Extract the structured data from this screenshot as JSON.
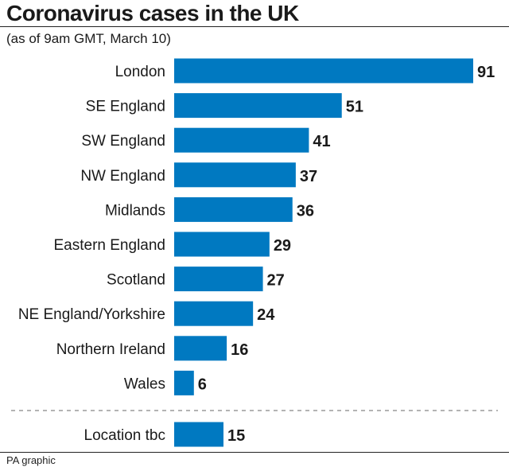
{
  "title": "Coronavirus cases in the UK",
  "subtitle": "(as of 9am GMT, March 10)",
  "source": "PA graphic",
  "bar_color": "#0079c1",
  "chart_data": {
    "type": "bar",
    "orientation": "horizontal",
    "title": "Coronavirus cases in the UK",
    "subtitle": "(as of 9am GMT, March 10)",
    "categories": [
      "London",
      "SE England",
      "SW England",
      "NW England",
      "Midlands",
      "Eastern England",
      "Scotland",
      "NE England/Yorkshire",
      "Northern Ireland",
      "Wales",
      "Location tbc"
    ],
    "values": [
      91,
      51,
      41,
      37,
      36,
      29,
      27,
      24,
      16,
      6,
      15
    ],
    "separator_before": "Location tbc",
    "xlim": [
      0,
      91
    ],
    "grid": false,
    "legend": "none"
  }
}
